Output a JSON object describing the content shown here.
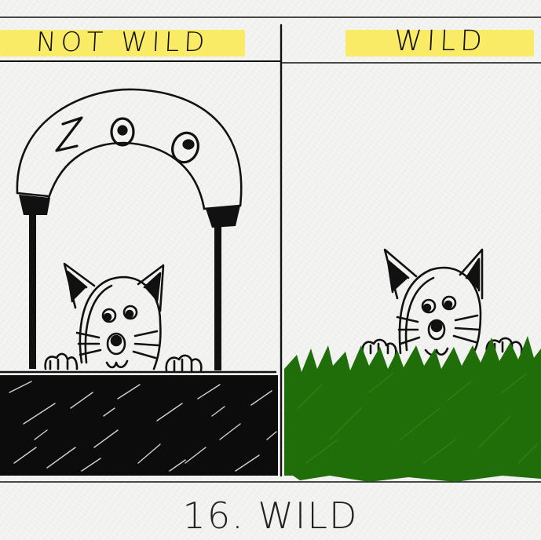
{
  "panels": {
    "left": {
      "label": "NOT WILD",
      "sign_text": "ZOO"
    },
    "right": {
      "label": "WILD"
    }
  },
  "caption": "16. WILD",
  "colors": {
    "highlight": "#fbea5a",
    "grass": "#1f6e0a",
    "ink": "#111111",
    "paper": "#f4f4f2"
  }
}
